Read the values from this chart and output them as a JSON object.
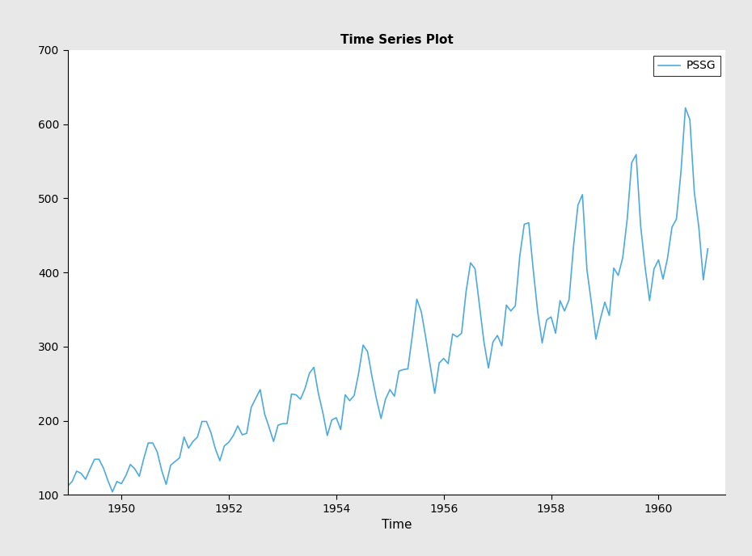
{
  "title": "Time Series Plot",
  "xlabel": "Time",
  "ylabel": "",
  "legend_label": "PSSG",
  "line_color": "#4DAADF",
  "line_width": 1.2,
  "ylim": [
    100,
    700
  ],
  "xlim_start": 1949.0,
  "xlim_end": 1961.25,
  "yticks": [
    100,
    200,
    300,
    400,
    500,
    600,
    700
  ],
  "xticks": [
    1950,
    1952,
    1954,
    1956,
    1958,
    1960
  ],
  "background_color": "#E8E8E8",
  "axes_background": "#FFFFFF",
  "title_fontsize": 11,
  "label_fontsize": 11,
  "tick_fontsize": 10,
  "values": [
    112,
    118,
    132,
    129,
    121,
    135,
    148,
    148,
    136,
    119,
    104,
    118,
    115,
    126,
    141,
    135,
    125,
    149,
    170,
    170,
    158,
    133,
    114,
    140,
    145,
    150,
    178,
    163,
    172,
    178,
    199,
    199,
    184,
    162,
    146,
    166,
    171,
    180,
    193,
    181,
    183,
    218,
    230,
    242,
    209,
    191,
    172,
    194,
    196,
    196,
    236,
    235,
    229,
    243,
    264,
    272,
    237,
    211,
    180,
    201,
    204,
    188,
    235,
    227,
    234,
    264,
    302,
    293,
    259,
    229,
    203,
    229,
    242,
    233,
    267,
    269,
    270,
    315,
    364,
    347,
    312,
    274,
    237,
    278,
    284,
    277,
    317,
    313,
    318,
    374,
    413,
    405,
    355,
    306,
    271,
    306,
    315,
    301,
    356,
    348,
    355,
    422,
    465,
    467,
    404,
    347,
    305,
    336,
    340,
    318,
    362,
    348,
    363,
    435,
    491,
    505,
    404,
    359,
    310,
    337,
    360,
    342,
    406,
    396,
    420,
    472,
    548,
    559,
    463,
    407,
    362,
    405,
    417,
    391,
    419,
    461,
    472,
    535,
    622,
    606,
    508,
    461,
    390,
    432
  ]
}
